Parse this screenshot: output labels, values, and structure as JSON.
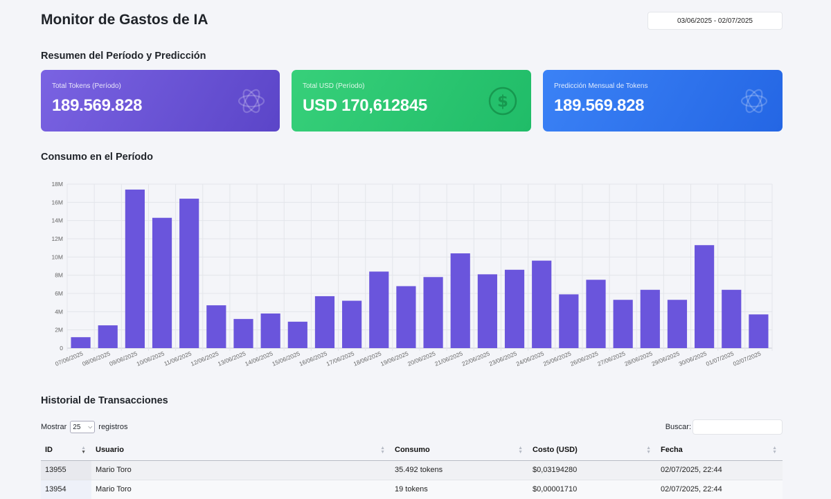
{
  "header": {
    "title": "Monitor de Gastos de IA",
    "date_range": "03/06/2025 - 02/07/2025"
  },
  "summary": {
    "title": "Resumen del Período y Predicción",
    "cards": [
      {
        "label": "Total Tokens (Período)",
        "value": "189.569.828",
        "icon": "openai-logo-icon"
      },
      {
        "label": "Total USD (Período)",
        "value": "USD 170,612845",
        "icon": "dollar-icon"
      },
      {
        "label": "Predicción Mensual de Tokens",
        "value": "189.569.828",
        "icon": "openai-logo-icon"
      }
    ],
    "colors": {
      "purple": "#6b54d8",
      "green": "#2cc76f",
      "blue": "#2f76ee"
    }
  },
  "consumption": {
    "title": "Consumo en el Período"
  },
  "chart_data": {
    "type": "bar",
    "title": "",
    "xlabel": "",
    "ylabel": "",
    "bar_color": "#6a55dc",
    "grid": true,
    "ylim": [
      0,
      18000000
    ],
    "yticks": [
      "0",
      "2M",
      "4M",
      "6M",
      "8M",
      "10M",
      "12M",
      "14M",
      "16M",
      "18M"
    ],
    "categories": [
      "07/06/2025",
      "08/06/2025",
      "09/06/2025",
      "10/06/2025",
      "11/06/2025",
      "12/06/2025",
      "13/06/2025",
      "14/06/2025",
      "15/06/2025",
      "16/06/2025",
      "17/06/2025",
      "18/06/2025",
      "19/06/2025",
      "20/06/2025",
      "21/06/2025",
      "22/06/2025",
      "23/06/2025",
      "24/06/2025",
      "25/06/2025",
      "26/06/2025",
      "27/06/2025",
      "28/06/2025",
      "29/06/2025",
      "30/06/2025",
      "01/07/2025",
      "02/07/2025"
    ],
    "values": [
      1200000,
      2500000,
      17400000,
      14300000,
      16400000,
      4700000,
      3200000,
      3800000,
      2900000,
      5700000,
      5200000,
      8400000,
      6800000,
      7800000,
      10400000,
      8100000,
      8600000,
      9600000,
      5900000,
      7500000,
      5300000,
      6400000,
      5300000,
      11300000,
      6400000,
      3700000
    ]
  },
  "transactions": {
    "title": "Historial de Transacciones",
    "show_label": "Mostrar",
    "page_size": "25",
    "records_label": "registros",
    "search_label": "Buscar:",
    "search_value": "",
    "columns": [
      "ID",
      "Usuario",
      "Consumo",
      "Costo (USD)",
      "Fecha"
    ],
    "rows": [
      {
        "id": "13955",
        "user": "Mario Toro",
        "consumption": "35.492 tokens",
        "cost": "$0,03194280",
        "date": "02/07/2025, 22:44"
      },
      {
        "id": "13954",
        "user": "Mario Toro",
        "consumption": "19 tokens",
        "cost": "$0,00001710",
        "date": "02/07/2025, 22:44"
      }
    ]
  }
}
